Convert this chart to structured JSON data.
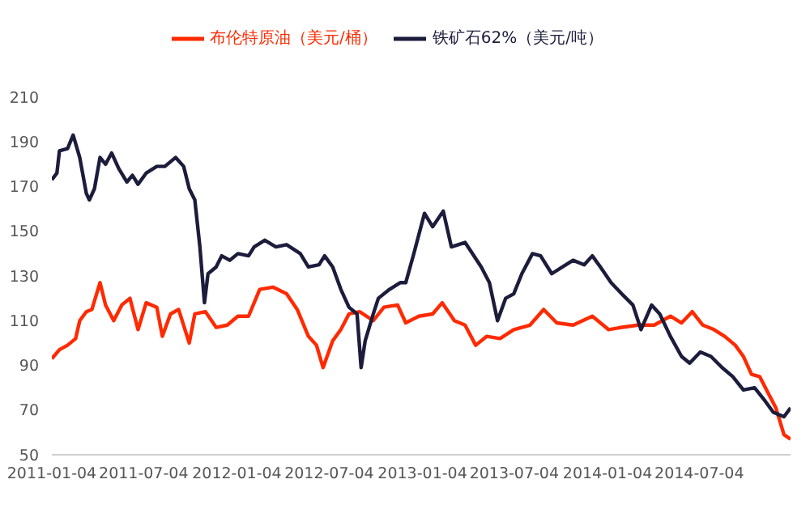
{
  "chart_data": {
    "type": "line",
    "legend": "top",
    "grid": false,
    "marker": "none",
    "line_style": "solid",
    "xlim": [
      "2011-01-04",
      "2014-12-31"
    ],
    "xticks": [
      "2011-01-04",
      "2011-07-04",
      "2012-01-04",
      "2012-07-04",
      "2013-01-04",
      "2013-07-04",
      "2014-01-04",
      "2014-07-04"
    ],
    "ylim": [
      50,
      210
    ],
    "yticks": [
      50,
      70,
      90,
      110,
      130,
      150,
      170,
      190,
      210
    ],
    "series": [
      {
        "name": "布伦特原油（美元/桶）",
        "color": "#ff2a00",
        "x": [
          "2011-01-04",
          "2011-01-19",
          "2011-02-04",
          "2011-02-20",
          "2011-02-28",
          "2011-03-13",
          "2011-03-24",
          "2011-04-09",
          "2011-04-20",
          "2011-05-06",
          "2011-05-22",
          "2011-06-07",
          "2011-06-23",
          "2011-07-09",
          "2011-07-30",
          "2011-08-10",
          "2011-08-26",
          "2011-09-11",
          "2011-10-02",
          "2011-10-13",
          "2011-11-03",
          "2011-11-24",
          "2011-12-16",
          "2012-01-06",
          "2012-01-27",
          "2012-02-18",
          "2012-03-15",
          "2012-04-11",
          "2012-05-02",
          "2012-05-24",
          "2012-06-09",
          "2012-06-22",
          "2012-07-11",
          "2012-07-27",
          "2012-08-12",
          "2012-09-02",
          "2012-09-29",
          "2012-10-20",
          "2012-11-16",
          "2012-12-02",
          "2012-12-28",
          "2013-01-24",
          "2013-02-12",
          "2013-03-08",
          "2013-03-29",
          "2013-04-19",
          "2013-05-11",
          "2013-06-06",
          "2013-07-03",
          "2013-08-04",
          "2013-08-31",
          "2013-09-26",
          "2013-10-28",
          "2013-12-05",
          "2014-01-06",
          "2014-02-01",
          "2014-03-05",
          "2014-04-06",
          "2014-05-08",
          "2014-05-30",
          "2014-06-20",
          "2014-07-11",
          "2014-08-02",
          "2014-08-23",
          "2014-09-13",
          "2014-09-29",
          "2014-10-15",
          "2014-10-31",
          "2014-11-16",
          "2014-12-02",
          "2014-12-18",
          "2014-12-31"
        ],
        "values": [
          93,
          97,
          99,
          102,
          110,
          114,
          115,
          127,
          117,
          110,
          117,
          120,
          106,
          118,
          116,
          103,
          113,
          115,
          100,
          113,
          114,
          107,
          108,
          112,
          112,
          124,
          125,
          122,
          115,
          103,
          99,
          89,
          101,
          106,
          113,
          114,
          110,
          116,
          117,
          109,
          112,
          113,
          118,
          110,
          108,
          99,
          103,
          102,
          106,
          108,
          115,
          109,
          108,
          112,
          106,
          107,
          108,
          108,
          112,
          109,
          114,
          108,
          106,
          103,
          99,
          94,
          86,
          85,
          78,
          71,
          59,
          57
        ]
      },
      {
        "name": "铁矿石62%（美元/吨）",
        "color": "#1c1c3c",
        "x": [
          "2011-01-04",
          "2011-01-14",
          "2011-01-19",
          "2011-02-04",
          "2011-02-15",
          "2011-02-28",
          "2011-03-13",
          "2011-03-19",
          "2011-03-29",
          "2011-04-09",
          "2011-04-20",
          "2011-05-02",
          "2011-05-16",
          "2011-06-01",
          "2011-06-12",
          "2011-06-23",
          "2011-07-09",
          "2011-07-30",
          "2011-08-15",
          "2011-09-05",
          "2011-09-21",
          "2011-10-02",
          "2011-10-13",
          "2011-10-23",
          "2011-11-01",
          "2011-11-08",
          "2011-11-24",
          "2011-12-05",
          "2011-12-21",
          "2012-01-06",
          "2012-01-27",
          "2012-02-07",
          "2012-02-28",
          "2012-03-21",
          "2012-04-11",
          "2012-05-08",
          "2012-05-24",
          "2012-06-14",
          "2012-06-25",
          "2012-07-11",
          "2012-07-27",
          "2012-08-12",
          "2012-08-28",
          "2012-09-05",
          "2012-09-13",
          "2012-09-29",
          "2012-10-09",
          "2012-10-31",
          "2012-11-21",
          "2012-12-02",
          "2012-12-18",
          "2013-01-08",
          "2013-01-24",
          "2013-02-14",
          "2013-03-02",
          "2013-03-29",
          "2013-04-30",
          "2013-05-16",
          "2013-06-01",
          "2013-06-17",
          "2013-07-03",
          "2013-07-19",
          "2013-08-09",
          "2013-08-25",
          "2013-09-16",
          "2013-10-07",
          "2013-10-28",
          "2013-11-19",
          "2013-12-05",
          "2013-12-21",
          "2014-01-11",
          "2014-02-01",
          "2014-02-23",
          "2014-03-11",
          "2014-04-01",
          "2014-04-17",
          "2014-05-08",
          "2014-05-30",
          "2014-06-15",
          "2014-07-06",
          "2014-07-27",
          "2014-08-18",
          "2014-09-08",
          "2014-09-29",
          "2014-10-21",
          "2014-11-11",
          "2014-11-27",
          "2014-12-18",
          "2014-12-31"
        ],
        "values": [
          173,
          176,
          186,
          187,
          193,
          183,
          167,
          164,
          169,
          183,
          180,
          185,
          178,
          172,
          175,
          171,
          176,
          179,
          179,
          183,
          179,
          169,
          164,
          143,
          118,
          131,
          134,
          139,
          137,
          140,
          139,
          143,
          146,
          143,
          144,
          140,
          134,
          135,
          139,
          134,
          124,
          116,
          113,
          89,
          101,
          113,
          120,
          124,
          127,
          127,
          140,
          158,
          152,
          159,
          143,
          145,
          134,
          127,
          110,
          120,
          122,
          131,
          140,
          139,
          131,
          134,
          137,
          135,
          139,
          134,
          127,
          122,
          117,
          106,
          117,
          113,
          103,
          94,
          91,
          96,
          94,
          89,
          85,
          79,
          80,
          74,
          69,
          67,
          71
        ]
      }
    ]
  }
}
